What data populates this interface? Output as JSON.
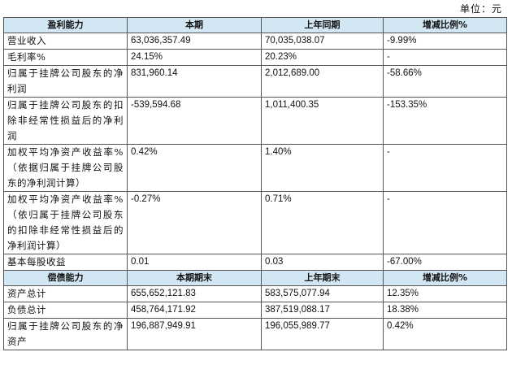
{
  "unit_label": "单位：元",
  "profit_section": {
    "headers": [
      "盈利能力",
      "本期",
      "上年同期",
      "增减比例%"
    ],
    "rows": [
      {
        "label": "营业收入",
        "current": "63,036,357.49",
        "previous": "70,035,038.07",
        "change": "-9.99%"
      },
      {
        "label": "毛利率%",
        "current": "24.15%",
        "previous": "20.23%",
        "change": "-"
      },
      {
        "label": "归属于挂牌公司股东的净利润",
        "current": "831,960.14",
        "previous": "2,012,689.00",
        "change": "-58.66%"
      },
      {
        "label": "归属于挂牌公司股东的扣除非经常性损益后的净利润",
        "current": "-539,594.68",
        "previous": "1,011,400.35",
        "change": "-153.35%"
      },
      {
        "label": "加权平均净资产收益率%（依据归属于挂牌公司股东的净利润计算）",
        "current": "0.42%",
        "previous": "1.40%",
        "change": "-"
      },
      {
        "label": "加权平均净资产收益率%（依归属于挂牌公司股东的扣除非经常性损益后的净利润计算）",
        "current": "-0.27%",
        "previous": "0.71%",
        "change": "-"
      },
      {
        "label": "基本每股收益",
        "current": "0.01",
        "previous": "0.03",
        "change": "-67.00%"
      }
    ]
  },
  "solvency_section": {
    "headers": [
      "偿债能力",
      "本期期末",
      "上年期末",
      "增减比例%"
    ],
    "rows": [
      {
        "label": "资产总计",
        "current": "655,652,121.83",
        "previous": "583,575,077.94",
        "change": "12.35%"
      },
      {
        "label": "负债总计",
        "current": "458,764,171.92",
        "previous": "387,519,088.17",
        "change": "18.38%"
      },
      {
        "label": "归属于挂牌公司股东的净资产",
        "current": "196,887,949.91",
        "previous": "196,055,989.77",
        "change": "0.42%"
      }
    ]
  }
}
